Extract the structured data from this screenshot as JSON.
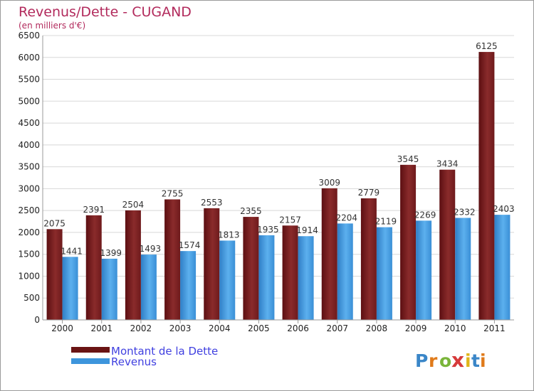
{
  "chart_data": {
    "type": "bar",
    "title": "Revenus/Dette - CUGAND",
    "subtitle": "(en milliers d'€)",
    "categories": [
      "2000",
      "2001",
      "2002",
      "2003",
      "2004",
      "2005",
      "2006",
      "2007",
      "2008",
      "2009",
      "2010",
      "2011"
    ],
    "series": [
      {
        "name": "Montant de la Dette",
        "values": [
          2075,
          2391,
          2504,
          2755,
          2553,
          2355,
          2157,
          3009,
          2779,
          3545,
          3434,
          6125
        ],
        "color": "#7a1f1f"
      },
      {
        "name": "Revenus",
        "values": [
          1441,
          1399,
          1493,
          1574,
          1813,
          1935,
          1914,
          2204,
          2119,
          2269,
          2332,
          2403
        ],
        "color": "#3d95dc"
      }
    ],
    "ylim": [
      0,
      6500
    ],
    "yticks": [
      0,
      500,
      1000,
      1500,
      2000,
      2500,
      3000,
      3500,
      4000,
      4500,
      5000,
      5500,
      6000,
      6500
    ],
    "grid": true,
    "legend_position": "bottom-left"
  },
  "logo": {
    "text": "Proxiti"
  }
}
